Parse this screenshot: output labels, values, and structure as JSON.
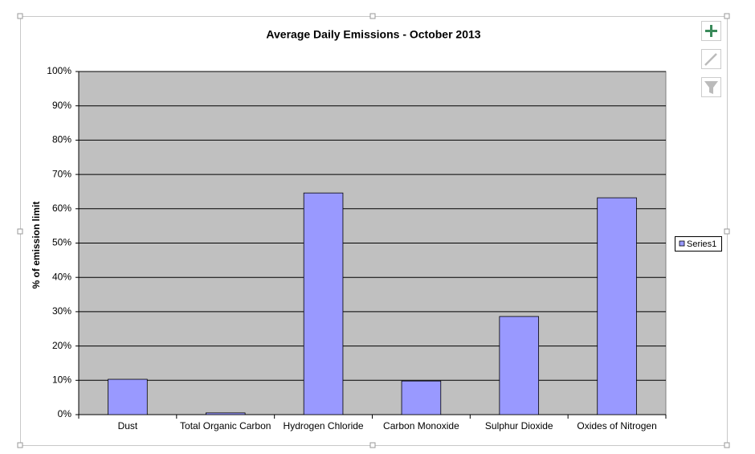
{
  "chart_data": {
    "type": "bar",
    "title": "Average Daily Emissions - October 2013",
    "y_label": "% of emission limit",
    "categories": [
      "Dust",
      "Total Organic Carbon",
      "Hydrogen Chloride",
      "Carbon Monoxide",
      "Sulphur Dioxide",
      "Oxides of Nitrogen"
    ],
    "series": [
      {
        "name": "Series1",
        "color": "#9999ff",
        "values": [
          10.3,
          0.5,
          64.6,
          9.8,
          28.6,
          63.2
        ]
      }
    ],
    "ylim": [
      0,
      100
    ],
    "yticks": [
      {
        "value": 0,
        "label": "0%"
      },
      {
        "value": 10,
        "label": "10%"
      },
      {
        "value": 20,
        "label": "20%"
      },
      {
        "value": 30,
        "label": "30%"
      },
      {
        "value": 40,
        "label": "40%"
      },
      {
        "value": 50,
        "label": "50%"
      },
      {
        "value": 60,
        "label": "60%"
      },
      {
        "value": 70,
        "label": "70%"
      },
      {
        "value": 80,
        "label": "80%"
      },
      {
        "value": 90,
        "label": "90%"
      },
      {
        "value": 100,
        "label": "100%"
      }
    ],
    "grid": true,
    "legend": "right"
  }
}
